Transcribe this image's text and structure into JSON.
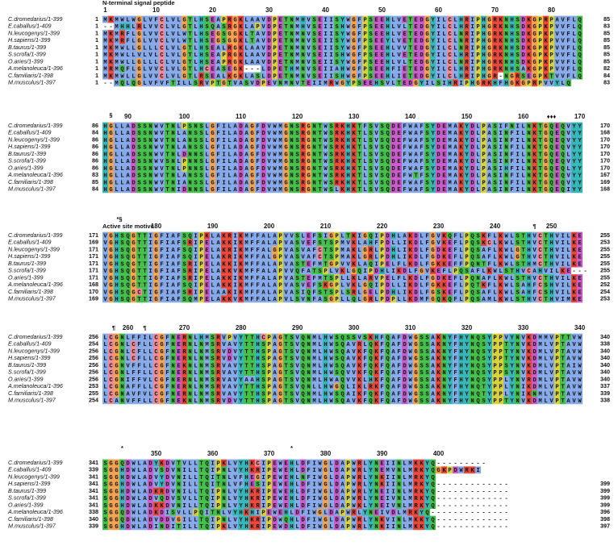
{
  "figure": {
    "blocks": [
      {
        "ruler": [
          1,
          10,
          20,
          30,
          40,
          50,
          60,
          70,
          80
        ],
        "annotations": [
          "N-terminal signal peptide"
        ],
        "rows": [
          {
            "name": "C.dromedarius/1-399",
            "start": 1,
            "sequence": "MKMWLWGLVFCLVLGTLHSEAPRGKLAAVDPETNMHVSEIISYWGFPSEEHLVETEDGYILCLHRIPHGRKNHSDKGPRPAVFLQ",
            "end": 85
          },
          {
            "name": "E.caballus/1-409",
            "start": 1,
            "sequence": "--MHHLRLVVCLVLGTLHSQASRGKLAPVDPETNMHVSEIISHWGFPSEEHLVLTEDGYILCLHRIPHGRKNHSDKGPKPVVFLQ",
            "end": 83
          },
          {
            "name": "N.leucogenys/1-399",
            "start": 1,
            "sequence": "MKMRFLGLVVCLVLWTLHSEGSGGKLTAVDPETNMNVSEIISYWGFPSEEHLVETEDGYILCLNRIPHGRKNHSDKGPKPVVFLQ",
            "end": 85
          },
          {
            "name": "H.sapiens/1-399",
            "start": 1,
            "sequence": "MKMRFLGLVVCLVLWTLHSEGSGGKLTAVDPETNMNVSEIISYWGFPSEEYLVETEDGYILCLNRIPHGRKNHSDKGPKPVVFLQ",
            "end": 85
          },
          {
            "name": "B.taurus/1-399",
            "start": 1,
            "sequence": "MKMWLLGLLLCLVLGTLHSEALRGKLAAVDPETNMNVSEIISYWGFPSEEHLVVTEDGYILCLNRIPHGRKNHSDKGPKPVVFLQ",
            "end": 85
          },
          {
            "name": "S.scrofa/1-399",
            "start": 1,
            "sequence": "MKMWLLVLVLCLVLGTLHSEAPRGKLAAVDPETNMNVSEIISHWGFPSEEHLVETEDGYILCLHRIPHGRKNHSDKGPKPVVFLQ",
            "end": 85
          },
          {
            "name": "O.aries/1-399",
            "start": 1,
            "sequence": "MKMWLLGLLLCLVLGTLHSEAPRGKLAAVDPETNMNVSEIISYWGFPSEEHLVLTEDGYILCLNRIPHGRKNHSDKGPKPVVFLQ",
            "end": 85
          },
          {
            "name": "A.melanoleuca/1-396",
            "start": 1,
            "sequence": "MRMQFLGLVVCLVLGTLHCEASEGK---LDPETHMNVSEIIAHWGFPSEEHFIETEDGYILCLHRIPHGRKNHSAKGPKPVVFLQ",
            "end": 82
          },
          {
            "name": "C.familiaris/1-398",
            "start": 1,
            "sequence": "MKMWLLGLVVCLVLGTLRSEALKGKLASLDPETNMNVSEIISHWGFPSEEHLIETEDGYILCLHRIPHGR-NGRSEGPKTVVFLQ",
            "end": 84
          },
          {
            "name": "M.musculus/1-397",
            "start": 1,
            "sequence": "--MQLQGLVFVFTILLSRVPTGTVASVDPEVNMNVTEIIMRWGYPSEEHSVLTEDGYILSIHRIPHGRKHFHGKGPRPVVYLQ",
            "end": 83
          }
        ]
      },
      {
        "ruler": [
          90,
          100,
          110,
          120,
          130,
          140,
          150,
          160,
          170
        ],
        "annotations": [
          "§",
          "♦♦♦"
        ],
        "rows": [
          {
            "name": "C.dromedarius/1-399",
            "start": 86,
            "sequence": "HGLLADSSNWVTNLPSNSLGFILADAGFDVWMGNSRGNTWSRKHKTFSVSQDEFWAFSYDEMAKYDLPASIFNILNKTGQEQVYY",
            "end": 170
          },
          {
            "name": "E.caballus/1-409",
            "start": 84,
            "sequence": "HGLLADSSNWVTNLANSSLGFILADAGFDVWMGNSRGNTWSRKHKTLSVSQDEFWAFSYDEMAKYDLPASINFILNKTGQEQVYY",
            "end": 168
          },
          {
            "name": "N.leucogenys/1-399",
            "start": 86,
            "sequence": "HGLLADSSNWVTNLANSSLGFILADAGFDVWMGNSRGNTWSRKHKTLSVSQDEFWAFSYDEMAKYDLPASINFILNKTGQEQVYY",
            "end": 170
          },
          {
            "name": "H.sapiens/1-399",
            "start": 86,
            "sequence": "HGLLADSSNWVTNLANSSLGFILADAGFDVWMGNSRGNTWSRKHKTLSVSQDEFWAFSYDEMAKYDLPASINFILNKTGQEQVYY",
            "end": 170
          },
          {
            "name": "B.taurus/1-399",
            "start": 86,
            "sequence": "HGLLADSSNWVTNLDNNSLGFILADAGFDVWMGNSRGNTWSRKHKTLSVSQDEFWAFSYDEMAKYDLPASINFILNKTGQEQLYY",
            "end": 170
          },
          {
            "name": "S.scrofa/1-399",
            "start": 86,
            "sequence": "HGLLADSSNWVSNLPNNSLGFILADAGFDVWMGNSRGNTWSRKHKTLSVSQDEFWAFSYDEMAKYDLPASINFILNKTGQEQVYY",
            "end": 170
          },
          {
            "name": "O.aries/1-399",
            "start": 86,
            "sequence": "HGLLADSSNWVTNLPNNSLGFILADAGFDVWMGNSRGNTWSRKHKTLSVSQDEFWAFSYDEMAKYDLPASIHFILNKTGQEQLYY",
            "end": 170
          },
          {
            "name": "A.melanoleuca/1-396",
            "start": 83,
            "sequence": "HGLLADSSNWVTNLANSSLGFILADAGFDVWMGNSRGNTWSRKHKTLSVSQDEFWTFSYDEMAKYDLPASINFILNKTGQEQVYY",
            "end": 167
          },
          {
            "name": "C.familiaris/1-398",
            "start": 85,
            "sequence": "HGLLADSSNWVTNIANSSLGFILADAGFDVWMGNSRGNTWSRKHKTLSVSQDEFWAFSYDEMAKYDLPASINFILNKTGQEQVYY",
            "end": 169
          },
          {
            "name": "M.musculus/1-397",
            "start": 84,
            "sequence": "HGLLADSSNWVTNIDNNSLGFILADAGFDVWMGNSRGNTWSLKHKTLSVSQDEFWAFSYDEMAKYDLPASINFILNKTGQEQIYY",
            "end": 168
          }
        ]
      },
      {
        "ruler": [
          180,
          190,
          200,
          210,
          220,
          230,
          240,
          250
        ],
        "annotations": [
          "*§",
          "Active site motive",
          "¶"
        ],
        "rows": [
          {
            "name": "C.dromedarius/1-399",
            "start": 171,
            "sequence": "VGHSQGTTIGFIAFSQIPKLAKRIKMFFALAPVVSLEFSIGPLTKIGQIPDHLAKDLFGVKQFLPQSKFLKWLSTHVCTHVILKE",
            "end": 255
          },
          {
            "name": "E.caballus/1-409",
            "start": 169,
            "sequence": "VGHSQGTTIGFIAFSRIPELAKKIKMFFALAPVASVEFSTSPMVKLAHFPDLLIKDLFGVKEFLPQSKCLKWLSTHVCTHVILKE",
            "end": 253
          },
          {
            "name": "N.leucogenys/1-399",
            "start": 171,
            "sequence": "VGHSQGTTIGFIAFSQIPELAKRIKMFFALGPVASVAFCTSPMAKLGRLPDHLIKDLFGDKEFLPQSAFLKWLGTHVCTHVILKE",
            "end": 255
          },
          {
            "name": "H.sapiens/1-399",
            "start": 171,
            "sequence": "VGHSQGTTIGFIAFSQIPELAKRIKMFFALGPVASVAFCTSPMAKLGRLPDHLIKDLFGDKEFLPQSAFLKWLGTHVCTHVILKE",
            "end": 255
          },
          {
            "name": "B.taurus/1-399",
            "start": 171,
            "sequence": "VGHSQGTTIGFIAFSRIPELAKKIKMFFALAPVASTEFMTGPVVKLAQIPELFLKDLFGKKEFFPQNTFLKWLSTHMCTHVILKE",
            "end": 255
          },
          {
            "name": "S.scrofa/1-399",
            "start": 171,
            "sequence": "VGHSQGTTIGFIAFSRIPELAKKVKMFFALAPVVQFATSPLVKLGQIPDHLIKDLFGVKEFLPQSAFLKWLSTHVCAHVILKE---",
            "end": 255
          },
          {
            "name": "O.aries/1-399",
            "start": 171,
            "sequence": "VGHSQGTTIGFIAFSRIPELAKKIKMFFALAPVASTEFMTSPLLKLARVPELFLKDLFGDKEFLPQNAFLKWLSTHVCTHVILKE",
            "end": 255
          },
          {
            "name": "A.melanoleuca/1-396",
            "start": 168,
            "sequence": "VGHSQGTTIGFIAFSQIPELAKKIKMFFALAPVASVEFSKGPLVKLGQIPDLLIKDLFGKKEFLPQTKFLKWLSAHFCSHVILKE",
            "end": 252
          },
          {
            "name": "C.familiaris/1-398",
            "start": 170,
            "sequence": "VGHSQGCTIGFIAFSRIPELAAKIKMFFALAPVASIQFSTSPLSRLGELPDHLIKDLFGSKEFLPQSAFLKWLSAHFCSHVILKE",
            "end": 254
          },
          {
            "name": "M.musculus/1-397",
            "start": 169,
            "sequence": "VGHSQGTTIGFIAFSQMPELAKKVKMFFALAPVLSVNFASGPLLQLGRLPDPLLKDMFGQKQFLPQSAMLKWLSTHVCTHVIMKE",
            "end": 253
          }
        ]
      },
      {
        "ruler": [
          260,
          270,
          280,
          290,
          300,
          310,
          320,
          330,
          340
        ],
        "annotations": [
          "¶",
          "¶"
        ],
        "rows": [
          {
            "name": "C.dromedarius/1-399",
            "start": 256,
            "sequence": "LCGNLFFILCGFNERNLHMSRVPVYTTHCPAGTSVQNMLHWSQSSVSKHFQAFDWGSSAKNYFHYNQSYPPVYNVKDMMVPTTVW",
            "end": 340
          },
          {
            "name": "E.caballus/1-409",
            "start": 254,
            "sequence": "LCGNLCFLLCGFNERNLNMSRVAVYTTHSPAGTSVQNMLHWSQAVRLQKFQAFDWGSSAKNYFHYNQSYPPTYNVKDMLVPTAVW",
            "end": 338
          },
          {
            "name": "N.leucogenys/1-399",
            "start": 256,
            "sequence": "LCGNLCFLLCGFNERNLNMSRVDVYTTHSPAGTSVQNMLHWSQAVKFQKFQAFDWGSSAKNYFHYNQSYPPTYNVKDMLVPTAVW",
            "end": 340
          },
          {
            "name": "H.sapiens/1-399",
            "start": 256,
            "sequence": "LCGNLCFLLCGFNERNLNMSRVDVYTTHSPAGTSVQNMLHWSQAVKFQKFQAFDWGSSAKNYFHYNQSYPPTYNVKDMLVPTAVW",
            "end": 340
          },
          {
            "name": "B.taurus/1-399",
            "start": 256,
            "sequence": "LCGNVFFLLCGFNEKNLNMSRVAVYTTHSPAGTSVQNMLHWSQAVKFQKFQAFDWGSSAKNYFHYNQSYPPSYNVKDMLVPTAIW",
            "end": 340
          },
          {
            "name": "S.scrofa/1-399",
            "start": 256,
            "sequence": "LCGNLFFLLCGFNERNLNMSRVAVYTTHSPAGTSVQNMLHWSQVVKFQKFQAFDWGSSAKNYFHYNQSYPPSYNVKDMLVPTAVW",
            "end": 340
          },
          {
            "name": "O.aries/1-399",
            "start": 256,
            "sequence": "LCGNIFFVLCGFNERNLNMSRVAVYAAHSPAGTSVQNMLHWAQVVKLHKFQAFDWGSSAKNYFHYNQSYPPLYNVRDMLVPTAVW",
            "end": 340
          },
          {
            "name": "A.melanoleuca/1-396",
            "start": 253,
            "sequence": "LCGNAFFLLCGFNERNLNMSRVAVYTTHSPAGTSVQNLLHWGQLIKLRKFQAFDWGSSAKNYFHYNQTYPPLYNIKDMLVPTAVW",
            "end": 337
          },
          {
            "name": "C.familiaris/1-398",
            "start": 255,
            "sequence": "LCGNAVFVLCGFNERNLNMSRVAVYTTHSPAGTSVQNMLHWSQAIKFQKFQAFDWGSSAKNYFHYNQTYPPLYNIKNMLVPTAVW",
            "end": 339
          },
          {
            "name": "M.musculus/1-397",
            "start": 254,
            "sequence": "LCANVFFLLCGFNEKNLNMSRVDVYTTHSPAGTSVQNMLHWSQAVKFQKFQAFDWGSSAKNYFHYNQSYPPTYNVKDMLVPTAVW",
            "end": 338
          }
        ]
      },
      {
        "ruler": [
          350,
          360,
          370,
          380,
          390,
          400
        ],
        "annotations": [
          "*",
          "*"
        ],
        "rows": [
          {
            "name": "C.dromedarius/1-399",
            "start": 341,
            "sequence": "SGGQDWLADYKDVTVLLTQIPKLVYHKCIPEWEHLDFIWGLDAPWRLYNEIINLMKKYQ---------",
            "end": null
          },
          {
            "name": "E.caballus/1-409",
            "start": 339,
            "sequence": "SGGHDWLADVSDVNILLTQIPNLVYHKRIPEWEHLDFIWGLDAPWRLYNEMVNLMRKYQGKPDWRKI",
            "end": null
          },
          {
            "name": "N.leucogenys/1-399",
            "start": 341,
            "sequence": "SGGHDWLADVYDVNILLTQITNLVFHEGIPEWEHLNFIWGLDAPWRLYNKIINLMRKYQ",
            "end": null
          },
          {
            "name": "H.sapiens/1-399",
            "start": 341,
            "sequence": "SGGHDWLADVYDVNILLTQITNLVFHESIPEWEHLDFIWGLDAPWRLYNKIINLMRKYQ-------------",
            "end": 399
          },
          {
            "name": "B.taurus/1-399",
            "start": 341,
            "sequence": "SGGHDWLADKRDVNILLTQIPNLVYHKRIPEWEHLDFIWGLDAPWRLYNEIINLMRKYQ-------------",
            "end": 399
          },
          {
            "name": "S.scrofa/1-399",
            "start": 341,
            "sequence": "SGGHDWLADVQDVSVLLTQIPNLVYHKRIPEWEHLDFIWGLDAPWRLYNEIVNLMRKYQ-------------",
            "end": 399
          },
          {
            "name": "O.aries/1-399",
            "start": 341,
            "sequence": "SGGHDWLADKKDVNILLTQIPNLVYHKRIPEWEHLDFIWGLDAPWKLYNEIVNLMRKYQ-------------",
            "end": 399
          },
          {
            "name": "A.melanoleuca/1-396",
            "start": 338,
            "sequence": "SGGQDWLADKDISVLLPQITNLVYHKHIPEWEHLDFIWGLDAPWRLYNEIVDLMRKYQ--------------",
            "end": 396
          },
          {
            "name": "C.familiaris/1-398",
            "start": 340,
            "sequence": "SGGQDWLADVDDVGILLTQIPNLVYHKRIPDWQHLDFIWGLDAPWRLYNKVINLMKKYQ-------------",
            "end": 398
          },
          {
            "name": "M.musculus/1-397",
            "start": 339,
            "sequence": "SGGHDWLADINDITILLTQIPKLVYHKRIPEWDHLDFIWGLDAPWRLYNKIINLMKKYQ-------------",
            "end": 397
          }
        ]
      }
    ]
  }
}
